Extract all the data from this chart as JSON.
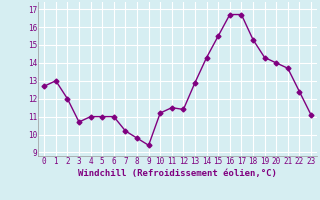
{
  "x": [
    0,
    1,
    2,
    3,
    4,
    5,
    6,
    7,
    8,
    9,
    10,
    11,
    12,
    13,
    14,
    15,
    16,
    17,
    18,
    19,
    20,
    21,
    22,
    23
  ],
  "y": [
    12.7,
    13.0,
    12.0,
    10.7,
    11.0,
    11.0,
    11.0,
    10.2,
    9.8,
    9.4,
    11.2,
    11.5,
    11.4,
    12.9,
    14.3,
    15.5,
    16.7,
    16.7,
    15.3,
    14.3,
    14.0,
    13.7,
    12.4,
    11.1
  ],
  "line_color": "#800080",
  "marker": "D",
  "marker_size": 2.5,
  "xlabel": "Windchill (Refroidissement éolien,°C)",
  "xlabel_fontsize": 6.5,
  "ylabel_ticks": [
    9,
    10,
    11,
    12,
    13,
    14,
    15,
    16,
    17
  ],
  "xtick_labels": [
    "0",
    "1",
    "2",
    "3",
    "4",
    "5",
    "6",
    "7",
    "8",
    "9",
    "10",
    "11",
    "12",
    "13",
    "14",
    "15",
    "16",
    "17",
    "18",
    "19",
    "20",
    "21",
    "22",
    "23"
  ],
  "ylim": [
    8.8,
    17.4
  ],
  "xlim": [
    -0.5,
    23.5
  ],
  "bg_color": "#d6eef2",
  "grid_color": "#b0d8e0",
  "tick_color": "#800080",
  "tick_fontsize": 5.5,
  "linewidth": 1.0
}
